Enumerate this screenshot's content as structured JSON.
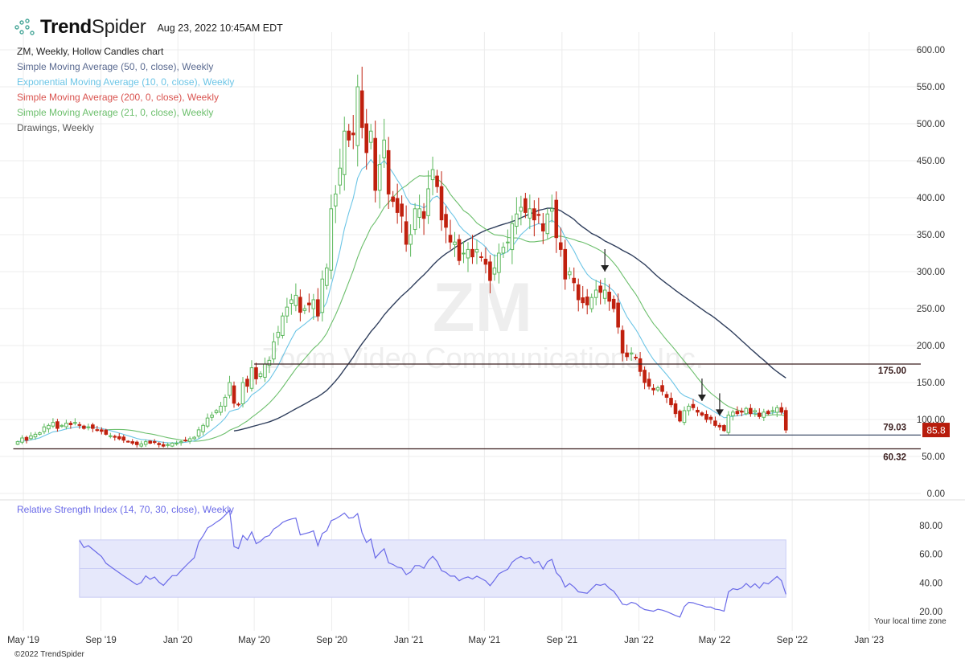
{
  "header": {
    "brand_bold": "Trend",
    "brand_light": "Spider",
    "timestamp": "Aug 23, 2022 10:45AM EDT"
  },
  "legend": {
    "chart": {
      "label": "ZM, Weekly, Hollow Candles chart",
      "color": "#222222"
    },
    "sma50": {
      "label": "Simple Moving Average (50, 0, close), Weekly",
      "color": "#5a6a90"
    },
    "ema10": {
      "label": "Exponential Moving Average (10, 0, close), Weekly",
      "color": "#6cc5e6"
    },
    "sma200": {
      "label": "Simple Moving Average (200, 0, close), Weekly",
      "color": "#d9534f"
    },
    "sma21": {
      "label": "Simple Moving Average (21, 0, close), Weekly",
      "color": "#6cbf6c"
    },
    "drawings": {
      "label": "Drawings, Weekly",
      "color": "#555555"
    }
  },
  "watermark": {
    "symbol": "ZM",
    "name": "Zoom Video Communications, Inc."
  },
  "rsi_title": "Relative Strength Index (14, 70, 30, close), Weekly",
  "timezone_note": "Your local time zone",
  "copyright": "©2022 TrendSpider",
  "colors": {
    "up": "#5cb85c",
    "down": "#c0200e",
    "sma50_line": "#2f3e5c",
    "ema10_line": "#6cc5e6",
    "sma21_line": "#6cbf6c",
    "rsi_line": "#6a6ae8",
    "rsi_band": "#e6e8fb",
    "level_line": "#3a1e1e",
    "price_badge": "#b71c0c"
  },
  "chart_data": {
    "type": "candlestick",
    "symbol": "ZM",
    "interval": "weekly",
    "start_week": "2019-04-22",
    "closes": [
      70,
      75,
      72,
      78,
      80,
      82,
      90,
      92,
      96,
      88,
      92,
      95,
      93,
      96,
      92,
      88,
      90,
      88,
      86,
      84,
      80,
      78,
      76,
      74,
      72,
      70,
      68,
      66,
      67,
      70,
      68,
      69,
      66,
      64,
      66,
      68,
      68,
      70,
      72,
      74,
      76,
      86,
      92,
      102,
      106,
      112,
      118,
      130,
      150,
      122,
      120,
      150,
      145,
      170,
      155,
      162,
      175,
      180,
      205,
      218,
      240,
      252,
      262,
      268,
      245,
      250,
      255,
      262,
      240,
      290,
      305,
      385,
      405,
      440,
      490,
      478,
      485,
      550,
      495,
      461,
      490,
      410,
      445,
      478,
      405,
      395,
      380,
      375,
      337,
      350,
      385,
      385,
      372,
      412,
      438,
      415,
      370,
      360,
      340,
      340,
      315,
      325,
      330,
      320,
      330,
      320,
      310,
      288,
      305,
      325,
      333,
      340,
      365,
      378,
      387,
      380,
      385,
      370,
      376,
      355,
      378,
      385,
      346,
      330,
      290,
      300,
      285,
      262,
      258,
      255,
      265,
      275,
      272,
      275,
      260,
      250,
      225,
      190,
      185,
      190,
      184,
      165,
      150,
      145,
      140,
      143,
      138,
      130,
      120,
      108,
      98,
      112,
      118,
      116,
      110,
      106,
      100,
      100,
      92,
      90,
      85,
      106,
      110,
      108,
      110,
      115,
      108,
      112,
      104,
      110,
      108,
      112,
      116,
      110,
      85.8
    ],
    "price_axis": {
      "ticks": [
        "600.00",
        "550.00",
        "500.00",
        "450.00",
        "400.00",
        "350.00",
        "300.00",
        "250.00",
        "200.00",
        "150.00",
        "100.00",
        "50.00",
        "0.00"
      ],
      "range": [
        0,
        600
      ]
    },
    "time_axis": {
      "ticks": [
        {
          "label": "May '19",
          "date": "2019-05-01"
        },
        {
          "label": "Sep '19",
          "date": "2019-09-01"
        },
        {
          "label": "Jan '20",
          "date": "2020-01-01"
        },
        {
          "label": "May '20",
          "date": "2020-05-01"
        },
        {
          "label": "Sep '20",
          "date": "2020-09-01"
        },
        {
          "label": "Jan '21",
          "date": "2021-01-01"
        },
        {
          "label": "May '21",
          "date": "2021-05-01"
        },
        {
          "label": "Sep '21",
          "date": "2021-09-01"
        },
        {
          "label": "Jan '22",
          "date": "2022-01-01"
        },
        {
          "label": "May '22",
          "date": "2022-05-01"
        },
        {
          "label": "Sep '22",
          "date": "2022-09-01"
        },
        {
          "label": "Jan '23",
          "date": "2023-01-01"
        }
      ]
    },
    "levels": [
      {
        "value": 175.0,
        "label": "175.00",
        "from": "2020-05-01"
      },
      {
        "value": 79.03,
        "label": "79.03",
        "from": "2022-05-09"
      },
      {
        "value": 60.32,
        "label": "60.32",
        "from": "2019-04-15"
      }
    ],
    "arrows": [
      {
        "date": "2021-11-08",
        "price": 300
      },
      {
        "date": "2022-04-11",
        "price": 125
      },
      {
        "date": "2022-05-09",
        "price": 105
      }
    ],
    "last_price": "85.8",
    "rsi": {
      "period": 14,
      "upper": 70,
      "lower": 30,
      "ticks": [
        "80.00",
        "60.00",
        "40.00",
        "20.00"
      ],
      "range": [
        14,
        92
      ]
    }
  }
}
